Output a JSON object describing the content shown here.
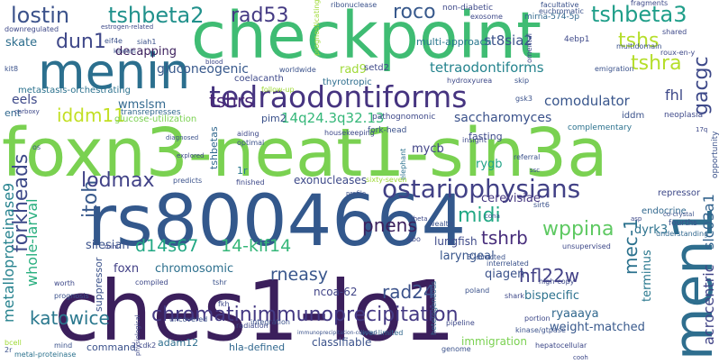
{
  "words": [
    {
      "text": "ches1-lo1",
      "color": "#3b1f5c"
    },
    {
      "text": "foxn3-neat1-sin3a",
      "color": "#7ad151"
    },
    {
      "text": "checkpoint",
      "color": "#3fbc73"
    },
    {
      "text": "rs8004664",
      "color": "#33588c"
    },
    {
      "text": "menin",
      "color": "#2b6f8e"
    },
    {
      "text": "men1",
      "color": "#2e6e8e"
    },
    {
      "text": "tedraodontiforms",
      "color": "#463480"
    },
    {
      "text": "chromatinimmunoprecipitation",
      "color": "#443983"
    },
    {
      "text": "ostariophysians",
      "color": "#424186"
    },
    {
      "text": "lostin",
      "color": "#3b528b"
    },
    {
      "text": "tshbeta2",
      "color": "#21918c"
    },
    {
      "text": "tshbeta3",
      "color": "#1f9e89"
    },
    {
      "text": "rad53",
      "color": "#443a83"
    },
    {
      "text": "roco",
      "color": "#38598c"
    },
    {
      "text": "tshs",
      "color": "#b5de2b"
    },
    {
      "text": "tshra",
      "color": "#b5de2b"
    },
    {
      "text": "gacgc",
      "color": "#3e4989"
    },
    {
      "text": "dun1",
      "color": "#3f4889"
    },
    {
      "text": "iddm11",
      "color": "#c2df23"
    },
    {
      "text": "tshrs",
      "color": "#482576"
    },
    {
      "text": "itoh",
      "color": "#38598c"
    },
    {
      "text": "lodmax",
      "color": "#414287"
    },
    {
      "text": "forkheads",
      "color": "#3e4a89"
    },
    {
      "text": "midi",
      "color": "#22a884"
    },
    {
      "text": "wppina",
      "color": "#5ec962"
    },
    {
      "text": "mec-1",
      "color": "#2c728e"
    },
    {
      "text": "tshrb",
      "color": "#472d7b"
    },
    {
      "text": "pnens",
      "color": "#3b1f5c"
    },
    {
      "text": "d14s67",
      "color": "#22a884"
    },
    {
      "text": "14-kif14",
      "color": "#35b779"
    },
    {
      "text": "rneasy",
      "color": "#39568c"
    },
    {
      "text": "katowice",
      "color": "#2a788e"
    },
    {
      "text": "hfl22w",
      "color": "#424086"
    },
    {
      "text": "rad24",
      "color": "#3b528b"
    },
    {
      "text": "whole-larval",
      "color": "#29af7f"
    },
    {
      "text": "metalloproteinase9",
      "color": "#26828e"
    },
    {
      "text": "acrocentric",
      "color": "#414487"
    },
    {
      "text": "slc03a1",
      "color": "#33638d"
    },
    {
      "text": "gluconeogenic",
      "color": "#38598c"
    },
    {
      "text": "tetraodontiforms",
      "color": "#25848e"
    },
    {
      "text": "comodulator",
      "color": "#39568c"
    },
    {
      "text": "14q24.3q32.13",
      "color": "#35b779"
    },
    {
      "text": "saccharomyces",
      "color": "#3b528b"
    },
    {
      "text": "rad9",
      "color": "#a0da39"
    },
    {
      "text": "wmslsm",
      "color": "#31688e"
    },
    {
      "text": "eels",
      "color": "#3e4989"
    },
    {
      "text": "decapping",
      "color": "#3b1f5c"
    },
    {
      "text": "skate",
      "color": "#2e6e8e"
    },
    {
      "text": "silesian",
      "color": "#3b528b"
    },
    {
      "text": "chromosomic",
      "color": "#2d708e"
    },
    {
      "text": "foxn",
      "color": "#424086"
    },
    {
      "text": "laryngeal",
      "color": "#39568c"
    },
    {
      "text": "lungfish",
      "color": "#3e4a89"
    },
    {
      "text": "qiagen",
      "color": "#3b528b"
    },
    {
      "text": "bispecific",
      "color": "#2c728e"
    },
    {
      "text": "ryaaaya",
      "color": "#31688e"
    },
    {
      "text": "weight-matched",
      "color": "#38598c"
    },
    {
      "text": "terminus",
      "color": "#2a788e"
    },
    {
      "text": "dyrk3",
      "color": "#2c728e"
    },
    {
      "text": "mycb",
      "color": "#414487"
    },
    {
      "text": "rygb",
      "color": "#20a386"
    },
    {
      "text": "cerevisiae",
      "color": "#453781"
    },
    {
      "text": "exonucleases",
      "color": "#3e4a89"
    },
    {
      "text": "ncoa-62",
      "color": "#414487"
    },
    {
      "text": "suppressor",
      "color": "#3b528b"
    },
    {
      "text": "adam12",
      "color": "#2e6e8e"
    },
    {
      "text": "hla-defined",
      "color": "#31688e"
    },
    {
      "text": "classifiable",
      "color": "#3b528b"
    },
    {
      "text": "immigration",
      "color": "#7ad151"
    },
    {
      "text": "fhl",
      "color": "#3e4989"
    },
    {
      "text": "st8sia2",
      "color": "#3b528b"
    },
    {
      "text": "multi-approach",
      "color": "#2a788e"
    },
    {
      "text": "pim2",
      "color": "#3b528b"
    },
    {
      "text": "tshbetas",
      "color": "#31688e"
    },
    {
      "text": "1r",
      "color": "#2a788e"
    },
    {
      "text": "fasting",
      "color": "#3e4a89"
    },
    {
      "text": "endocrine",
      "color": "#31688e"
    },
    {
      "text": "setd2",
      "color": "#3e4989"
    },
    {
      "text": "thyrotropic",
      "color": "#2e6e8e"
    },
    {
      "text": "coelacanth",
      "color": "#3e4989"
    },
    {
      "text": "metastasis-orchestrating",
      "color": "#2c728e"
    },
    {
      "text": "glucose-utilization",
      "color": "#7ad151"
    },
    {
      "text": "transrepresses",
      "color": "#31688e"
    },
    {
      "text": "fork-head",
      "color": "#3b528b"
    },
    {
      "text": "complementary",
      "color": "#2c728e"
    },
    {
      "text": "pathognomonic",
      "color": "#3e4989"
    },
    {
      "text": "mirna-574-5p",
      "color": "#31688e"
    },
    {
      "text": "ribonuclease",
      "color": "#3b528b"
    },
    {
      "text": "non-diabetic",
      "color": "#3e4989"
    },
    {
      "text": "facultative",
      "color": "#3b528b"
    },
    {
      "text": "euchromatic",
      "color": "#3b528b"
    },
    {
      "text": "exosome",
      "color": "#3e4989"
    },
    {
      "text": "fragments",
      "color": "#3e4989"
    },
    {
      "text": "downregulated",
      "color": "#3e4989"
    },
    {
      "text": "eif4e",
      "color": "#3b528b"
    },
    {
      "text": "siah1",
      "color": "#3b528b"
    },
    {
      "text": "4ebp1",
      "color": "#3e4989"
    },
    {
      "text": "multidomain",
      "color": "#3b528b"
    },
    {
      "text": "roux-en-y",
      "color": "#3e4989"
    },
    {
      "text": "shared",
      "color": "#3e4989"
    },
    {
      "text": "kit8",
      "color": "#3b528b"
    },
    {
      "text": "emigration",
      "color": "#3b528b"
    },
    {
      "text": "hydroxyurea",
      "color": "#3e4989"
    },
    {
      "text": "skip",
      "color": "#3b528b"
    },
    {
      "text": "follow-up",
      "color": "#a0da39"
    },
    {
      "text": "ent",
      "color": "#31688e"
    },
    {
      "text": "iddm",
      "color": "#3b528b"
    },
    {
      "text": "neoplasia",
      "color": "#3e4989"
    },
    {
      "text": "opportunity",
      "color": "#3b528b"
    },
    {
      "text": "insight",
      "color": "#3e4989"
    },
    {
      "text": "elephant",
      "color": "#2c728e"
    },
    {
      "text": "referral",
      "color": "#3b528b"
    },
    {
      "text": "repressor",
      "color": "#3e4989"
    },
    {
      "text": "fourths",
      "color": "#3b528b"
    },
    {
      "text": "understanding",
      "color": "#31688e"
    },
    {
      "text": "sirt6",
      "color": "#3b528b"
    },
    {
      "text": "unsupervised",
      "color": "#3e4989"
    },
    {
      "text": "interrelated",
      "color": "#3b528b"
    },
    {
      "text": "high-copy",
      "color": "#3e4989"
    },
    {
      "text": "poland",
      "color": "#3b528b"
    },
    {
      "text": "shark",
      "color": "#3e4989"
    },
    {
      "text": "heterogeneous",
      "color": "#31688e"
    },
    {
      "text": "kinase/gtpase",
      "color": "#3b528b"
    },
    {
      "text": "hepatocellular",
      "color": "#3e4989"
    },
    {
      "text": "genome",
      "color": "#3b528b"
    },
    {
      "text": "liver-limited",
      "color": "#31688e"
    },
    {
      "text": "command",
      "color": "#3b528b"
    },
    {
      "text": "2-cdk2",
      "color": "#3e4989"
    },
    {
      "text": "metal-proteinase",
      "color": "#2c728e"
    },
    {
      "text": "immunoprecipitation-coupled",
      "color": "#3b528b"
    },
    {
      "text": "radiation",
      "color": "#3e4989"
    },
    {
      "text": "uncovered",
      "color": "#3b528b"
    },
    {
      "text": "fkh",
      "color": "#3e4989"
    },
    {
      "text": "tshr",
      "color": "#3b528b"
    },
    {
      "text": "compiled",
      "color": "#3e4989"
    },
    {
      "text": "prognosis",
      "color": "#3b528b"
    },
    {
      "text": "worth",
      "color": "#3e4989"
    },
    {
      "text": "bcell",
      "color": "#a0da39"
    },
    {
      "text": "predicts",
      "color": "#3b528b"
    },
    {
      "text": "finished",
      "color": "#3e4989"
    },
    {
      "text": "sixty-seven",
      "color": "#a0da39"
    },
    {
      "text": "wealth",
      "color": "#3b528b"
    },
    {
      "text": "abo",
      "color": "#3e4989"
    },
    {
      "text": "3'-directed",
      "color": "#3b528b"
    },
    {
      "text": "portion",
      "color": "#3e4989"
    },
    {
      "text": "integration",
      "color": "#3b528b"
    },
    {
      "text": "aiding",
      "color": "#3e4989"
    },
    {
      "text": "optimal",
      "color": "#3b528b"
    },
    {
      "text": "housekeeping",
      "color": "#3e4989"
    },
    {
      "text": "worldwide",
      "color": "#3b528b"
    },
    {
      "text": "pipeline",
      "color": "#3e4989"
    },
    {
      "text": "mind",
      "color": "#3b528b"
    },
    {
      "text": "omental",
      "color": "#3e4989"
    },
    {
      "text": "prognosticating",
      "color": "#a0da39"
    },
    {
      "text": "estrogen-related",
      "color": "#3e4989"
    },
    {
      "text": "kinesin",
      "color": "#3b528b"
    },
    {
      "text": "blood",
      "color": "#3e4989"
    },
    {
      "text": "diagnosed",
      "color": "#3b528b"
    },
    {
      "text": "explored",
      "color": "#3e4989"
    },
    {
      "text": "profile",
      "color": "#3b528b"
    },
    {
      "text": "physiological",
      "color": "#3e4989"
    },
    {
      "text": "2r",
      "color": "#3b528b"
    },
    {
      "text": "carboxy",
      "color": "#3e4989"
    },
    {
      "text": "gsk3",
      "color": "#3b528b"
    },
    {
      "text": "theta",
      "color": "#3e4989"
    },
    {
      "text": "cona",
      "color": "#3b528b"
    },
    {
      "text": "asp",
      "color": "#3e4989"
    },
    {
      "text": "co-crystal",
      "color": "#3b528b"
    },
    {
      "text": "17q",
      "color": "#3e4989"
    },
    {
      "text": "os",
      "color": "#3b528b"
    },
    {
      "text": "mini",
      "color": "#3e4989"
    },
    {
      "text": "ssc",
      "color": "#3b528b"
    },
    {
      "text": "cooh",
      "color": "#3e4989"
    }
  ]
}
